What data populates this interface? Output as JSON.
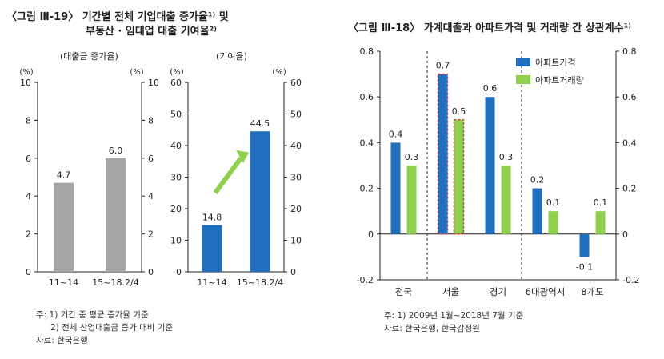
{
  "left_title_line1": "〈그림 Ⅲ-19〉 기간별 전체 기업대출 증가율¹⁾ 및",
  "left_title_line2": "부동산 · 임대업 대출 기여율²⁾",
  "left_notes": [
    "주: 1) 기간 중 평균 증가율 기준",
    "2) 전체 산업대출금 증가 대비 기준",
    "자료: 한국은행"
  ],
  "right_title": "〈그림 Ⅲ-18〉 가계대출과 아파트가격 및 거래량 간 상관계수¹⁾",
  "right_notes": [
    "주: 1) 2009년 1월~2018년 7월 기준",
    "자료: 한국은행, 한국감정원"
  ],
  "colors": {
    "gray": "#a6a6a8",
    "blue": "#1f6fbe",
    "green": "#8fd14f",
    "red_dashed": "#e23a3a",
    "arrow": "#8fd14f"
  },
  "chart_data": [
    {
      "type": "bar",
      "panel_label": "(대출금 증가율)",
      "unit_left": "(%)",
      "unit_right": "(%)",
      "categories": [
        "11~14",
        "15~18.2/4"
      ],
      "values": [
        4.7,
        6.0
      ],
      "value_labels": [
        "4.7",
        "6.0"
      ],
      "ylim": [
        0,
        10
      ],
      "yticks": [
        0,
        2,
        4,
        6,
        8,
        10
      ],
      "bar_color": "gray"
    },
    {
      "type": "bar",
      "panel_label": "(기여율)",
      "unit_left": "(%)",
      "unit_right": "(%)",
      "categories": [
        "11~14",
        "15~18.2/4"
      ],
      "values": [
        14.8,
        44.5
      ],
      "value_labels": [
        "14.8",
        "44.5"
      ],
      "ylim": [
        0,
        60
      ],
      "yticks": [
        0,
        10,
        20,
        30,
        40,
        50,
        60
      ],
      "bar_color": "blue",
      "arrow": "up-right arrow between bars"
    },
    {
      "type": "bar",
      "categories": [
        "전국",
        "서울",
        "경기",
        "6대광역시",
        "8개도"
      ],
      "series": [
        {
          "name": "아파트가격",
          "values": [
            0.4,
            0.7,
            0.6,
            0.2,
            -0.1
          ],
          "labels": [
            "0.4",
            "0.7",
            "0.6",
            "0.2",
            "-0.1"
          ],
          "color": "blue"
        },
        {
          "name": "아파트거래량",
          "values": [
            0.3,
            0.5,
            0.3,
            0.1,
            0.1
          ],
          "labels": [
            "0.3",
            "0.5",
            "0.3",
            "0.1",
            "0.1"
          ],
          "color": "green"
        }
      ],
      "ylim": [
        -0.2,
        0.8
      ],
      "yticks": [
        -0.2,
        0,
        0.2,
        0.4,
        0.6,
        0.8
      ],
      "ytick_labels": [
        "-0.2",
        "0",
        "0.2",
        "0.4",
        "0.6",
        "0.8"
      ],
      "legend_position": "top-center",
      "highlighted_category": "서울",
      "dashed_separators": "after 전국 and after 경기"
    }
  ]
}
